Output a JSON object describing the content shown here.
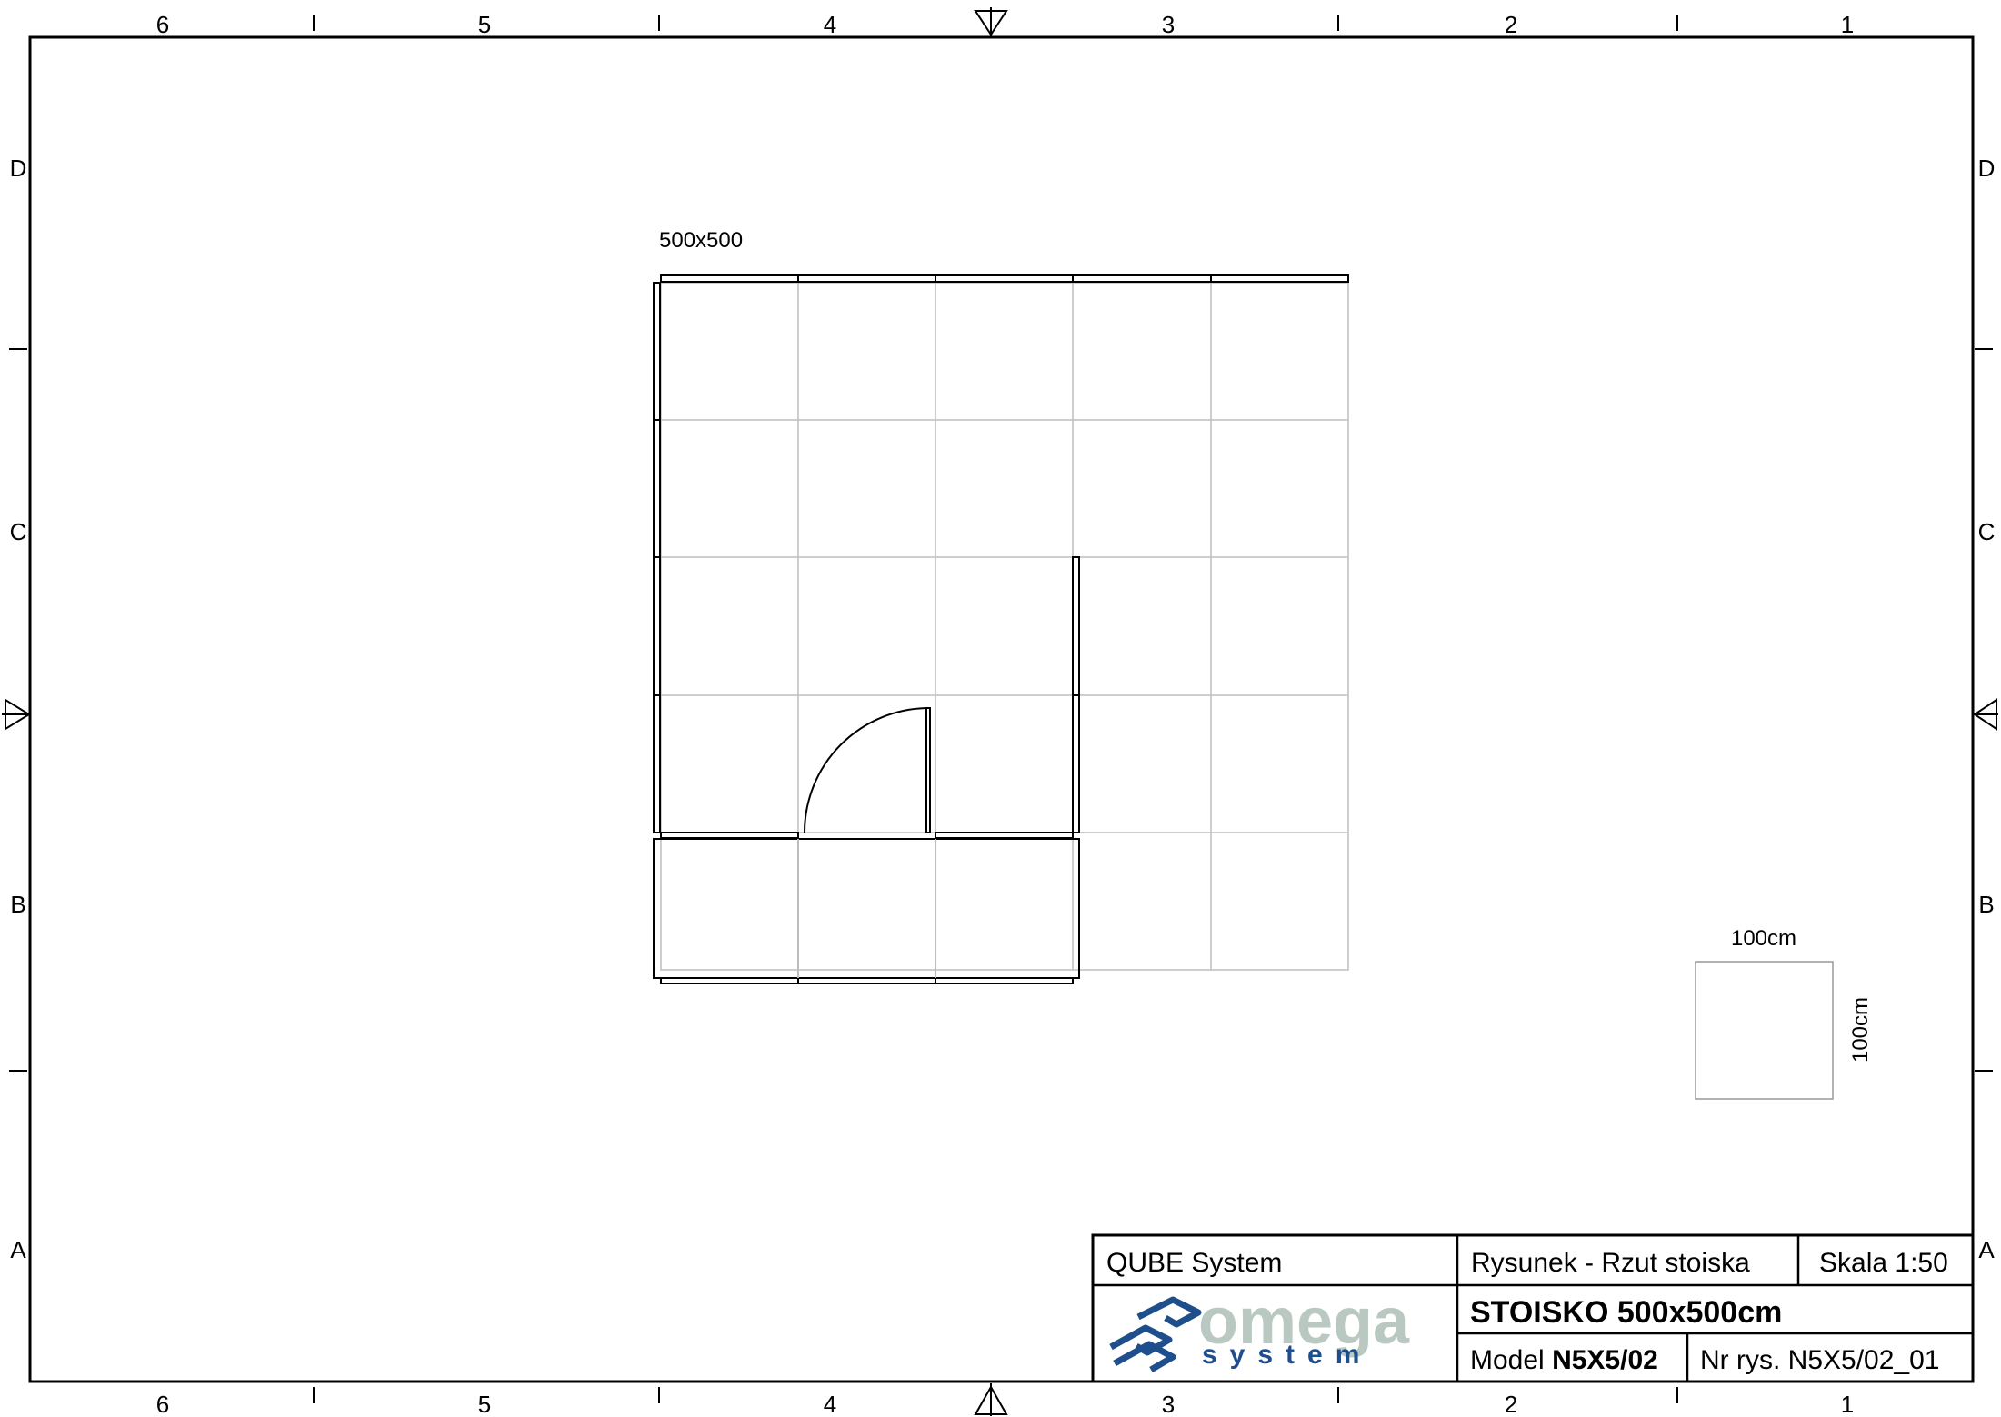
{
  "frame": {
    "columns": [
      "6",
      "5",
      "4",
      "3",
      "2",
      "1"
    ],
    "rows": [
      "D",
      "C",
      "B",
      "A"
    ]
  },
  "drawing": {
    "booth_label": "500x500",
    "scale_box": {
      "width_label": "100cm",
      "height_label": "100cm"
    }
  },
  "title_block": {
    "system": "QUBE System",
    "drawing_type": "Rysunek - Rzut stoiska",
    "scale": "Skala 1:50",
    "title": "STOISKO 500x500cm",
    "model_label": "Model",
    "model_value": "N5X5/02",
    "drawing_number": "Nr rys. N5X5/02_01",
    "logo": {
      "word": "omega",
      "sub": "system",
      "brand_blue": "#1f4e8c",
      "brand_grey": "#b9c9c2"
    }
  },
  "colors": {
    "line": "#000000",
    "grid": "#bdbdbd"
  }
}
